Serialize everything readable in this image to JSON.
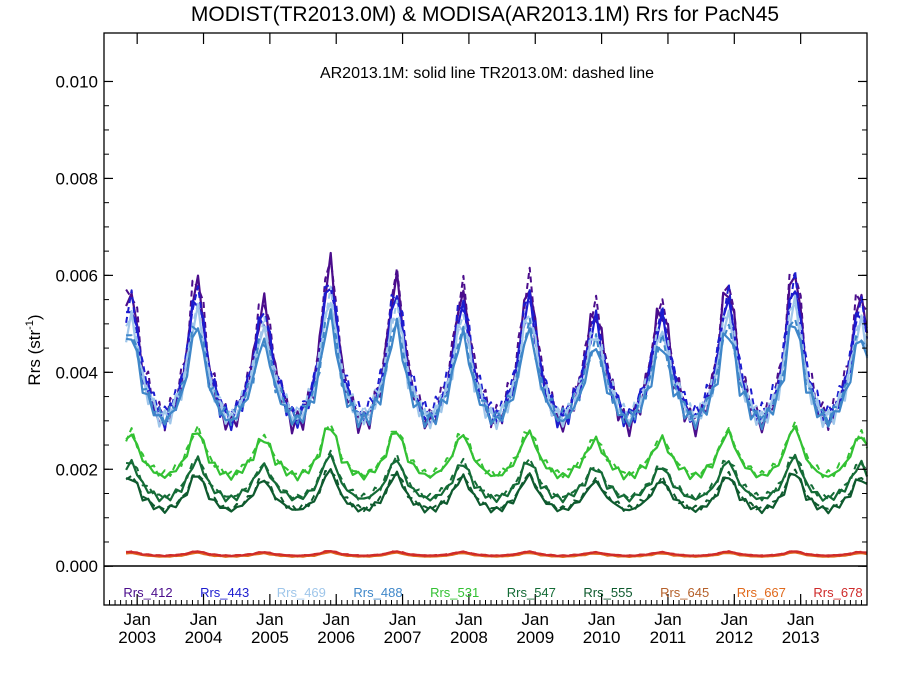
{
  "chart_data": {
    "type": "line",
    "title": "MODIST(TR2013.0M) & MODISA(AR2013.1M)  Rrs for PacN45",
    "ylabel": "Rrs (str",
    "ylabel_sup": "-1",
    "ylabel_close": ")",
    "annotation": "AR2013.1M: solid line   TR2013.0M: dashed line",
    "x_tick_month": "Jan",
    "x_tick_years": [
      "2003",
      "2004",
      "2005",
      "2006",
      "2007",
      "2008",
      "2009",
      "2010",
      "2011",
      "2012",
      "2013"
    ],
    "y_ticks": [
      "0.000",
      "0.002",
      "0.004",
      "0.006",
      "0.008",
      "0.010"
    ],
    "ylim": [
      -0.0008,
      0.011
    ],
    "xlim": [
      "2002-07",
      "2014-01"
    ],
    "grid": false,
    "legend_position": "bottom inside plot",
    "line_styles": {
      "AR2013.1M": "solid",
      "TR2013.0M": "dashed"
    },
    "series": [
      {
        "name": "Rrs_412",
        "color": "#4b0d8c",
        "base": 0.0037,
        "amp": 0.0044
      },
      {
        "name": "Rrs_443",
        "color": "#1c1ccf",
        "base": 0.0037,
        "amp": 0.0038
      },
      {
        "name": "Rrs_469",
        "color": "#9fc6ea",
        "base": 0.0036,
        "amp": 0.0033
      },
      {
        "name": "Rrs_488",
        "color": "#3f87c9",
        "base": 0.0035,
        "amp": 0.0029
      },
      {
        "name": "Rrs_531",
        "color": "#33c133",
        "base": 0.0021,
        "amp": 0.0014
      },
      {
        "name": "Rrs_547",
        "color": "#146b36",
        "base": 0.0016,
        "amp": 0.0012
      },
      {
        "name": "Rrs_555",
        "color": "#0e5a2e",
        "base": 0.00135,
        "amp": 0.0011
      },
      {
        "name": "Rrs_645",
        "color": "#b5602a",
        "base": 0.00023,
        "amp": 0.00013
      },
      {
        "name": "Rrs_667",
        "color": "#e0691b",
        "base": 0.00022,
        "amp": 0.00012
      },
      {
        "name": "Rrs_678",
        "color": "#cf2a2a",
        "base": 0.00024,
        "amp": 0.00013
      }
    ]
  }
}
